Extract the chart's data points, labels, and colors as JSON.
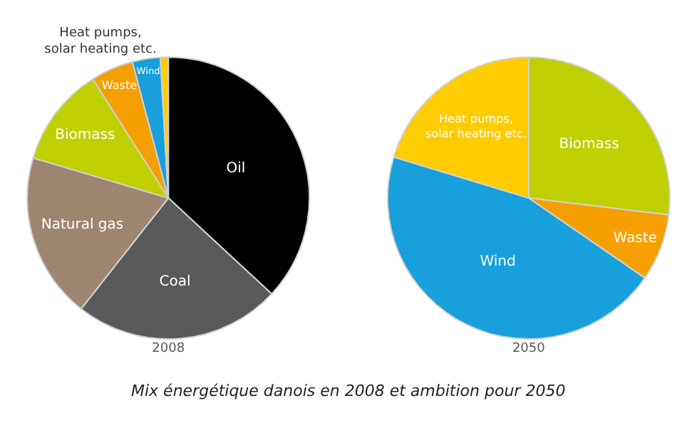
{
  "chart_data": [
    {
      "type": "pie",
      "title": "2008",
      "legend": false,
      "categories": [
        "Oil",
        "Coal",
        "Natural gas",
        "Biomass",
        "Waste",
        "Wind",
        "Heat pumps, solar heating etc."
      ],
      "values": [
        36.9,
        23.7,
        19.0,
        11.4,
        4.9,
        3.2,
        0.9
      ],
      "colors": [
        "#000000",
        "#595959",
        "#9c8670",
        "#bfcf00",
        "#f5a000",
        "#17a0db",
        "#ffcc00"
      ],
      "annotations": [
        "Mix énergétique danois en 2008 et ambition pour 2050"
      ]
    },
    {
      "type": "pie",
      "title": "2050",
      "legend": false,
      "categories": [
        "Biomass",
        "Waste",
        "Wind",
        "Heat pumps, solar heating etc."
      ],
      "values": [
        26.9,
        7.7,
        45.1,
        20.3
      ],
      "colors": [
        "#bfcf00",
        "#f5a000",
        "#17a0db",
        "#ffcc00"
      ]
    }
  ]
}
